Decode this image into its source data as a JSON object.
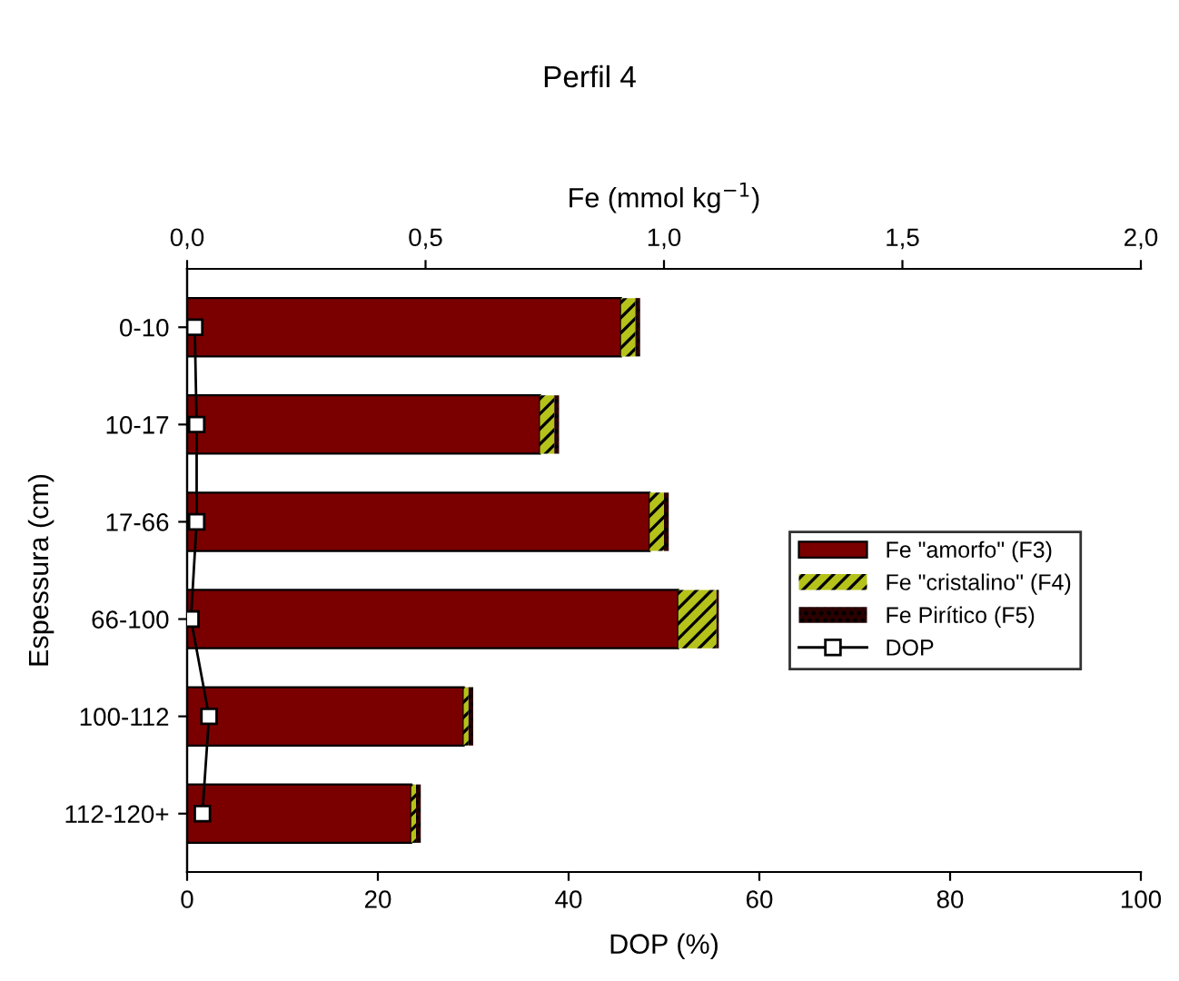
{
  "chart_data": {
    "type": "bar",
    "title": "Perfil 4",
    "ylabel": "Espessura (cm)",
    "xlabel": "DOP (%)",
    "x2label": "Fe (mmol kg$^{−1}$)",
    "orientation": "horizontal",
    "stacked": true,
    "categories": [
      "0-10",
      "10-17",
      "17-66",
      "66-100",
      "100-112",
      "112-120+"
    ],
    "series": [
      {
        "name": "Fe \"amorfo\" (F3)",
        "color": "#7a0000",
        "axis": "x2",
        "values": [
          0.91,
          0.74,
          0.97,
          1.03,
          0.58,
          0.47
        ]
      },
      {
        "name": "Fe \"cristalino\" (F4)",
        "color": "#b5c21a",
        "axis": "x2",
        "values": [
          0.03,
          0.03,
          0.03,
          0.08,
          0.01,
          0.01
        ]
      },
      {
        "name": "Fe Pirítico (F5)",
        "color": "#2a0000",
        "axis": "x2",
        "values": [
          0.01,
          0.01,
          0.01,
          0.005,
          0.01,
          0.01
        ]
      },
      {
        "name": "DOP",
        "type": "line",
        "color": "#000000",
        "marker": "square",
        "values": [
          0.8,
          1.0,
          1.0,
          0.4,
          2.3,
          1.6
        ]
      }
    ],
    "xlim": [
      0,
      100
    ],
    "xticks": [
      0,
      20,
      40,
      60,
      80,
      100
    ],
    "x2lim": [
      0,
      2
    ],
    "x2ticks": [
      {
        "value": 0,
        "label": "0,0"
      },
      {
        "value": 0.5,
        "label": "0,5"
      },
      {
        "value": 1,
        "label": "1,0"
      },
      {
        "value": 1.5,
        "label": "1,5"
      },
      {
        "value": 2,
        "label": "2,0"
      }
    ],
    "grid": false,
    "legend": "right"
  }
}
